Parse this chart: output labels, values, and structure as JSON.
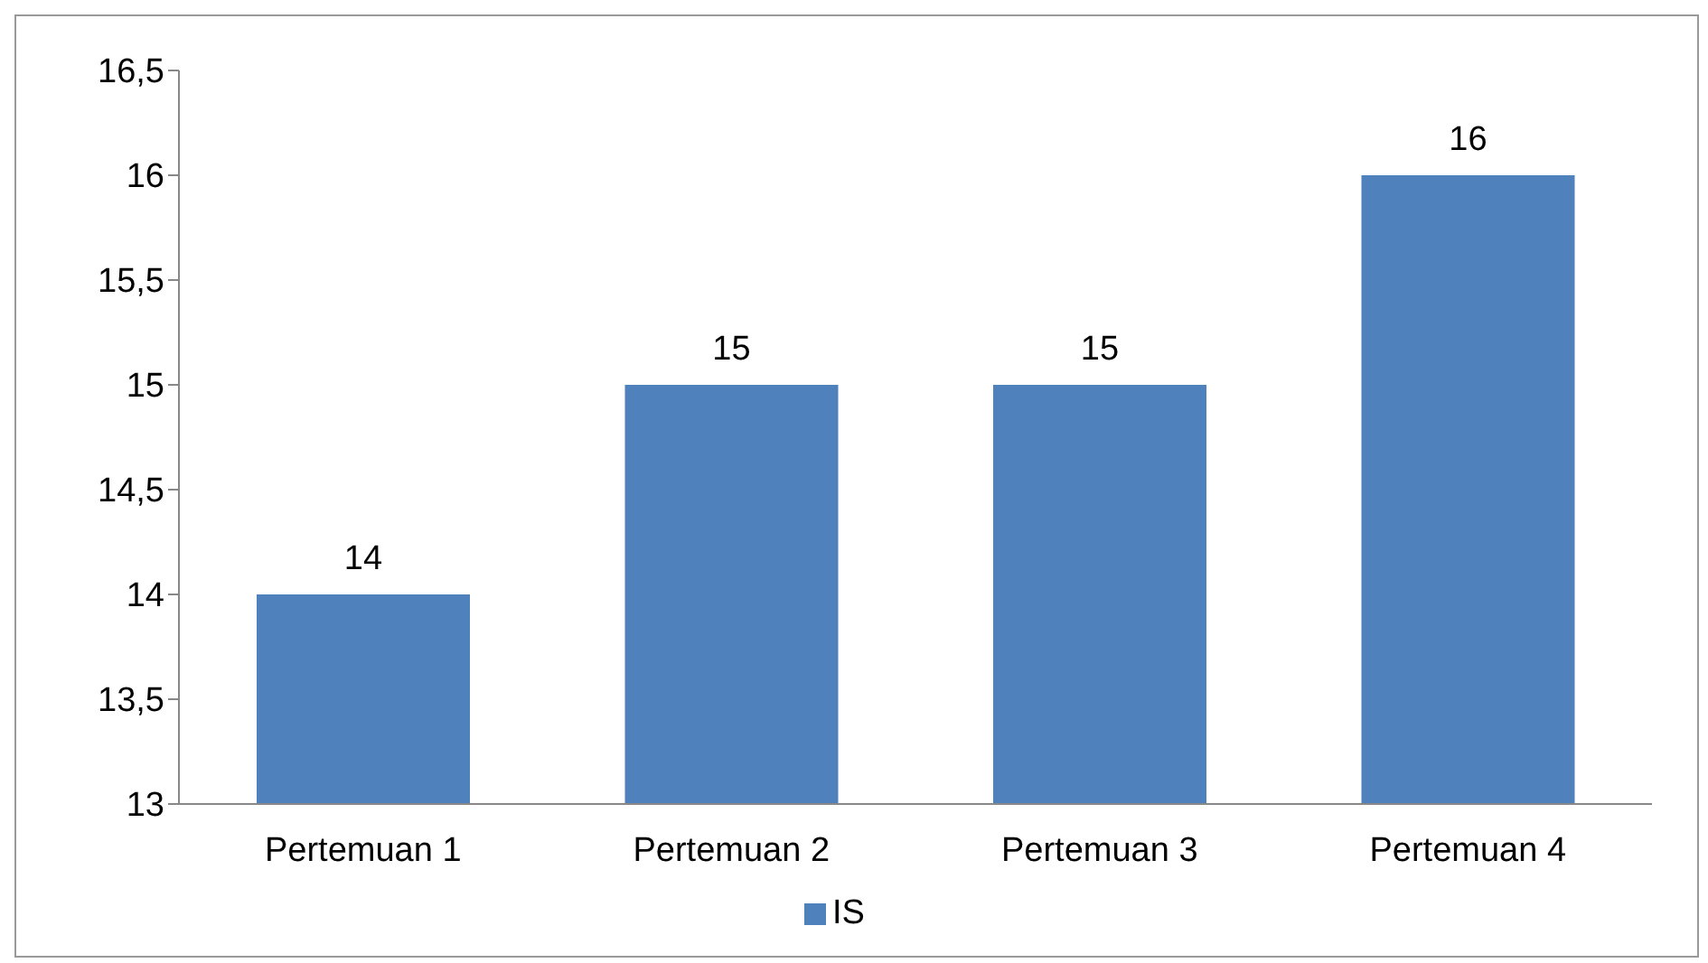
{
  "chart_data": {
    "type": "bar",
    "categories": [
      "Pertemuan 1",
      "Pertemuan 2",
      "Pertemuan 3",
      "Pertemuan 4"
    ],
    "series": [
      {
        "name": "IS",
        "color": "#4f81bd",
        "values": [
          14,
          15,
          15,
          16
        ]
      }
    ],
    "ylim": [
      13,
      16.5
    ],
    "yticks": [
      13,
      {
        "value": 13.5,
        "label": "13,5"
      },
      14,
      {
        "value": 14.5,
        "label": "14,5"
      },
      15,
      {
        "value": 15.5,
        "label": "15,5"
      },
      16,
      {
        "value": 16.5,
        "label": "16,5"
      }
    ],
    "data_labels": true,
    "grid": false,
    "legend": "bottom"
  }
}
